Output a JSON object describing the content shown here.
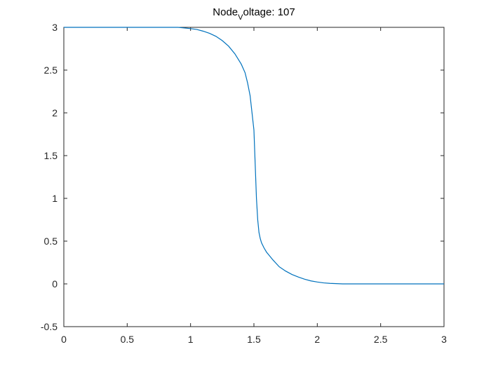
{
  "chart_data": {
    "type": "line",
    "title": {
      "main": "Node",
      "subscript": "V",
      "rest": "oltage: 107"
    },
    "xlabel": "",
    "ylabel": "",
    "xlim": [
      0,
      3
    ],
    "ylim": [
      -0.5,
      3
    ],
    "xticks": [
      0,
      0.5,
      1,
      1.5,
      2,
      2.5,
      3
    ],
    "xtick_labels": [
      "0",
      "0.5",
      "1",
      "1.5",
      "2",
      "2.5",
      "3"
    ],
    "yticks": [
      -0.5,
      0,
      0.5,
      1,
      1.5,
      2,
      2.5,
      3
    ],
    "ytick_labels": [
      "-0.5",
      "0",
      "0.5",
      "1",
      "1.5",
      "2",
      "2.5",
      "3"
    ],
    "grid": false,
    "legend": "none",
    "colors": {
      "line": "#0072BD",
      "axes": "#262626",
      "background": "#ffffff"
    },
    "series": [
      {
        "x": [
          0,
          0.2,
          0.4,
          0.6,
          0.8,
          0.9,
          1.0,
          1.05,
          1.1,
          1.15,
          1.2,
          1.25,
          1.3,
          1.35,
          1.4,
          1.43,
          1.45,
          1.47,
          1.5,
          1.51,
          1.52,
          1.53,
          1.54,
          1.55,
          1.56,
          1.58,
          1.6,
          1.65,
          1.7,
          1.75,
          1.8,
          1.85,
          1.9,
          1.95,
          2.0,
          2.05,
          2.1,
          2.2,
          2.3,
          2.5,
          2.8,
          3.0
        ],
        "y": [
          3.0,
          3.0,
          3.0,
          3.0,
          3.0,
          3.0,
          2.985,
          2.975,
          2.955,
          2.93,
          2.895,
          2.845,
          2.78,
          2.69,
          2.57,
          2.47,
          2.35,
          2.2,
          1.8,
          1.4,
          1.0,
          0.75,
          0.6,
          0.53,
          0.48,
          0.42,
          0.37,
          0.28,
          0.2,
          0.15,
          0.11,
          0.08,
          0.055,
          0.035,
          0.022,
          0.012,
          0.006,
          0.0,
          0.0,
          0.0,
          0.0,
          0.0
        ]
      }
    ]
  }
}
